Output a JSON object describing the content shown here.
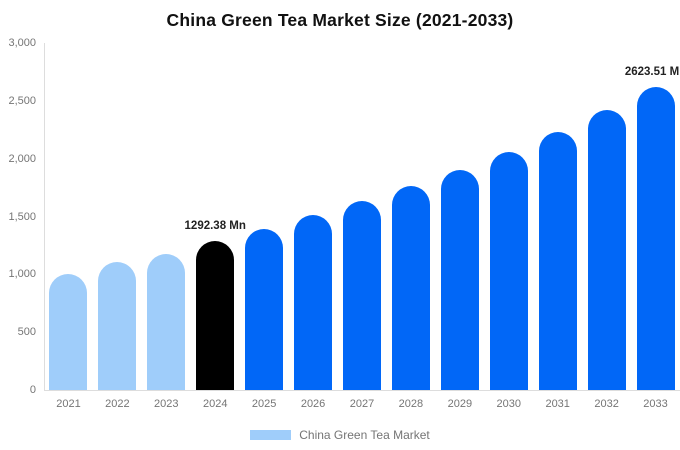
{
  "title": "China Green Tea Market Size (2021-2033)",
  "legend": {
    "label": "China Green Tea Market",
    "swatch_color": "#9fcdfa"
  },
  "colors": {
    "past": "#9fcdfa",
    "highlight": "#000000",
    "forecast": "#0167f7",
    "axis_line": "#dddddd",
    "tick_text": "#757575",
    "data_label_text": "#222222"
  },
  "chart_data": {
    "type": "bar",
    "title": "China Green Tea Market Size (2021-2033)",
    "series_name": "China Green Tea Market",
    "unit": "Mn",
    "xlabel": "",
    "ylabel": "",
    "ylim": [
      0,
      3000
    ],
    "yticks": [
      "0",
      "500",
      "1,000",
      "1,500",
      "2,000",
      "2,500",
      "3,000"
    ],
    "grid": false,
    "legend_position": "bottom",
    "categories": [
      "2021",
      "2022",
      "2023",
      "2024",
      "2025",
      "2026",
      "2027",
      "2028",
      "2029",
      "2030",
      "2031",
      "2032",
      "2033"
    ],
    "values": [
      1000,
      1105,
      1175,
      1292.38,
      1390,
      1510,
      1630,
      1760,
      1905,
      2055,
      2230,
      2420,
      2623.51
    ],
    "points": [
      {
        "year": "2021",
        "value": 1000,
        "segment": "past"
      },
      {
        "year": "2022",
        "value": 1105,
        "segment": "past"
      },
      {
        "year": "2023",
        "value": 1175,
        "segment": "past"
      },
      {
        "year": "2024",
        "value": 1292.38,
        "segment": "highlight",
        "label": "1292.38 Mn"
      },
      {
        "year": "2025",
        "value": 1390,
        "segment": "forecast"
      },
      {
        "year": "2026",
        "value": 1510,
        "segment": "forecast"
      },
      {
        "year": "2027",
        "value": 1630,
        "segment": "forecast"
      },
      {
        "year": "2028",
        "value": 1760,
        "segment": "forecast"
      },
      {
        "year": "2029",
        "value": 1905,
        "segment": "forecast"
      },
      {
        "year": "2030",
        "value": 2055,
        "segment": "forecast"
      },
      {
        "year": "2031",
        "value": 2230,
        "segment": "forecast"
      },
      {
        "year": "2032",
        "value": 2420,
        "segment": "forecast"
      },
      {
        "year": "2033",
        "value": 2623.51,
        "segment": "forecast",
        "label": "2623.51 Mn"
      }
    ]
  }
}
